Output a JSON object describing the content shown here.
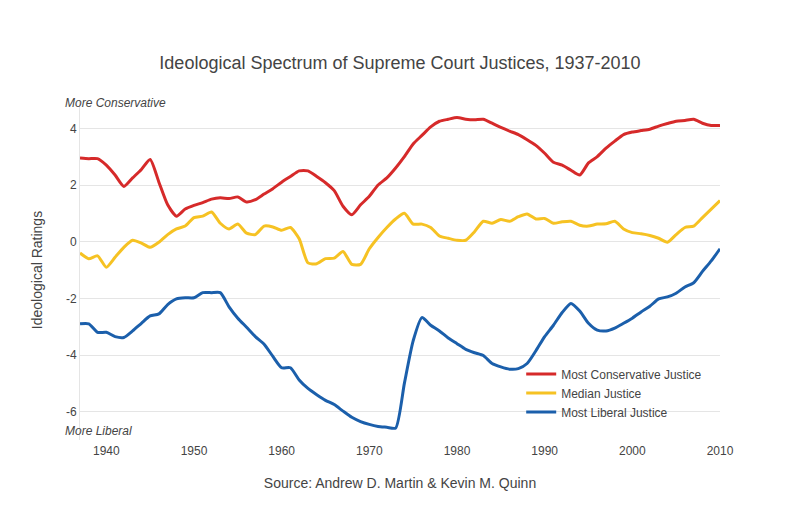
{
  "chart_data": {
    "type": "line",
    "title": "Ideological Spectrum of Supreme Court Justices, 1937-2010",
    "x_label": "Source: Andrew D. Martin & Kevin M. Quinn",
    "y_label": "Ideological Ratings",
    "annotations": [
      "More Conservative",
      "More Liberal"
    ],
    "x": [
      1937,
      1938,
      1939,
      1940,
      1941,
      1942,
      1943,
      1944,
      1945,
      1946,
      1947,
      1948,
      1949,
      1950,
      1951,
      1952,
      1953,
      1954,
      1955,
      1956,
      1957,
      1958,
      1959,
      1960,
      1961,
      1962,
      1963,
      1964,
      1965,
      1966,
      1967,
      1968,
      1969,
      1970,
      1971,
      1972,
      1973,
      1974,
      1975,
      1976,
      1977,
      1978,
      1979,
      1980,
      1981,
      1982,
      1983,
      1984,
      1985,
      1986,
      1987,
      1988,
      1989,
      1990,
      1991,
      1992,
      1993,
      1994,
      1995,
      1996,
      1997,
      1998,
      1999,
      2000,
      2001,
      2002,
      2003,
      2004,
      2005,
      2006,
      2007,
      2008,
      2009,
      2010
    ],
    "series": [
      {
        "name": "Most Conservative Justice",
        "color": "#d62a2a",
        "values": [
          2.95,
          2.93,
          2.93,
          2.7,
          2.35,
          1.95,
          2.25,
          2.55,
          2.9,
          2.1,
          1.3,
          0.9,
          1.15,
          1.28,
          1.38,
          1.5,
          1.55,
          1.52,
          1.58,
          1.4,
          1.48,
          1.68,
          1.87,
          2.1,
          2.3,
          2.5,
          2.5,
          2.3,
          2.08,
          1.8,
          1.25,
          0.95,
          1.3,
          1.6,
          2.0,
          2.25,
          2.6,
          3.0,
          3.45,
          3.75,
          4.05,
          4.25,
          4.32,
          4.38,
          4.32,
          4.3,
          4.32,
          4.18,
          4.03,
          3.9,
          3.78,
          3.6,
          3.4,
          3.12,
          2.8,
          2.7,
          2.52,
          2.35,
          2.78,
          3.0,
          3.3,
          3.55,
          3.78,
          3.87,
          3.92,
          3.97,
          4.08,
          4.17,
          4.25,
          4.28,
          4.32,
          4.18,
          4.1,
          4.1
        ]
      },
      {
        "name": "Median Justice",
        "color": "#f6c223",
        "values": [
          -0.4,
          -0.6,
          -0.5,
          -0.9,
          -0.55,
          -0.2,
          0.05,
          -0.05,
          -0.2,
          -0.02,
          0.25,
          0.45,
          0.55,
          0.85,
          0.9,
          1.05,
          0.65,
          0.45,
          0.62,
          0.3,
          0.25,
          0.55,
          0.52,
          0.4,
          0.5,
          0.1,
          -0.75,
          -0.78,
          -0.6,
          -0.58,
          -0.35,
          -0.8,
          -0.8,
          -0.25,
          0.15,
          0.5,
          0.8,
          1.0,
          0.62,
          0.62,
          0.5,
          0.2,
          0.12,
          0.05,
          0.05,
          0.35,
          0.72,
          0.65,
          0.78,
          0.72,
          0.88,
          0.98,
          0.8,
          0.82,
          0.65,
          0.7,
          0.72,
          0.58,
          0.55,
          0.62,
          0.63,
          0.72,
          0.45,
          0.32,
          0.28,
          0.22,
          0.12,
          -0.02,
          0.25,
          0.5,
          0.55,
          0.85,
          1.15,
          1.45
        ]
      },
      {
        "name": "Most Liberal Justice",
        "color": "#1b5fab",
        "values": [
          -2.9,
          -2.9,
          -3.2,
          -3.2,
          -3.35,
          -3.38,
          -3.15,
          -2.88,
          -2.62,
          -2.55,
          -2.22,
          -2.02,
          -1.98,
          -1.98,
          -1.8,
          -1.8,
          -1.8,
          -2.3,
          -2.7,
          -3.02,
          -3.35,
          -3.62,
          -4.05,
          -4.45,
          -4.45,
          -4.88,
          -5.18,
          -5.4,
          -5.6,
          -5.75,
          -5.98,
          -6.2,
          -6.35,
          -6.45,
          -6.52,
          -6.55,
          -6.58,
          -5.0,
          -3.5,
          -2.68,
          -2.95,
          -3.15,
          -3.4,
          -3.6,
          -3.8,
          -3.92,
          -4.02,
          -4.3,
          -4.42,
          -4.5,
          -4.48,
          -4.3,
          -3.85,
          -3.35,
          -2.95,
          -2.5,
          -2.18,
          -2.45,
          -2.88,
          -3.12,
          -3.15,
          -3.05,
          -2.88,
          -2.7,
          -2.48,
          -2.28,
          -2.02,
          -1.95,
          -1.82,
          -1.6,
          -1.45,
          -1.05,
          -0.68,
          -0.25
        ]
      }
    ],
    "xlim": [
      1937,
      2010
    ],
    "xticks": [
      1940,
      1950,
      1960,
      1970,
      1980,
      1990,
      2000,
      2010
    ],
    "ylim": [
      -7,
      5
    ],
    "yticks": [
      -6,
      -4,
      -2,
      0,
      2,
      4
    ],
    "grid": true,
    "legend": "bottom right"
  }
}
